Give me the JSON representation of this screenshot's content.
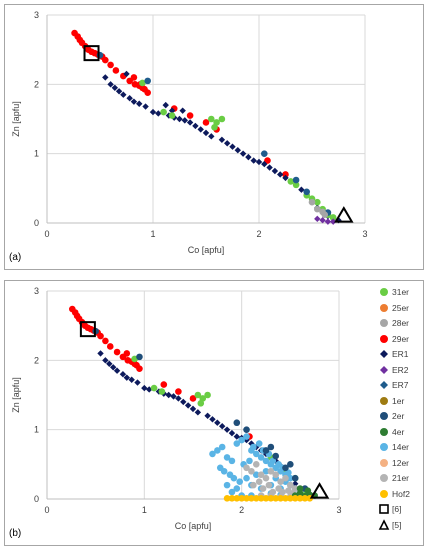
{
  "chart_data": [
    {
      "type": "scatter",
      "panel_label": "(a)",
      "xlabel": "Co [apfu]",
      "ylabel": "Zn [apfu]",
      "xlim": [
        0,
        3
      ],
      "ylim": [
        0,
        3
      ],
      "xticks": [
        "0",
        "1",
        "2",
        "3"
      ],
      "yticks": [
        "0",
        "1",
        "2",
        "3"
      ],
      "grid": true,
      "series": [
        {
          "color": "#ff0000",
          "marker": "circle",
          "x": [
            0.26,
            0.29,
            0.31,
            0.33,
            0.36,
            0.39,
            0.42,
            0.45,
            0.48,
            0.52,
            0.55,
            0.6,
            0.65,
            0.72,
            0.78,
            0.83,
            0.87,
            0.9,
            0.92,
            0.95,
            0.82,
            0.88,
            1.2,
            1.35,
            1.5,
            1.6,
            2.08,
            2.25
          ],
          "y": [
            2.74,
            2.69,
            2.64,
            2.6,
            2.55,
            2.5,
            2.47,
            2.45,
            2.43,
            2.4,
            2.35,
            2.28,
            2.2,
            2.12,
            2.05,
            2.0,
            1.98,
            1.95,
            1.93,
            1.88,
            2.1,
            2.0,
            1.65,
            1.55,
            1.45,
            1.35,
            0.9,
            0.7
          ]
        },
        {
          "color": "#0d1a5c",
          "marker": "diamond",
          "x": [
            0.55,
            0.6,
            0.64,
            0.68,
            0.72,
            0.78,
            0.82,
            0.87,
            0.93,
            1.0,
            1.05,
            1.1,
            1.15,
            1.2,
            1.25,
            1.3,
            1.35,
            1.4,
            1.45,
            1.5,
            1.55,
            1.65,
            1.7,
            1.75,
            1.8,
            1.85,
            1.9,
            1.95,
            2.0,
            2.05,
            2.1,
            2.15,
            2.2,
            2.25,
            2.3,
            2.35,
            2.4,
            2.45,
            2.5,
            2.55,
            2.6,
            2.65,
            2.7,
            2.75,
            1.12,
            1.18,
            1.28,
            0.75
          ],
          "y": [
            2.1,
            2.0,
            1.95,
            1.9,
            1.85,
            1.8,
            1.75,
            1.72,
            1.68,
            1.6,
            1.58,
            1.6,
            1.55,
            1.52,
            1.5,
            1.48,
            1.45,
            1.4,
            1.35,
            1.3,
            1.25,
            1.2,
            1.15,
            1.1,
            1.05,
            1.0,
            0.95,
            0.9,
            0.88,
            0.85,
            0.8,
            0.75,
            0.7,
            0.65,
            0.6,
            0.55,
            0.48,
            0.4,
            0.3,
            0.22,
            0.15,
            0.1,
            0.06,
            0.04,
            1.7,
            1.62,
            1.62,
            2.15
          ]
        },
        {
          "color": "#6acd44",
          "marker": "circle",
          "x": [
            0.9,
            1.1,
            1.18,
            1.55,
            1.6,
            1.65,
            1.58,
            2.3,
            2.35,
            2.45,
            2.5,
            2.55,
            2.6,
            2.65,
            2.7
          ],
          "y": [
            2.02,
            1.6,
            1.55,
            1.5,
            1.45,
            1.5,
            1.38,
            0.6,
            0.55,
            0.4,
            0.35,
            0.3,
            0.2,
            0.12,
            0.08
          ]
        },
        {
          "color": "#1f5c8c",
          "marker": "circle",
          "x": [
            0.5,
            0.95,
            2.05,
            2.35,
            2.45,
            2.65
          ],
          "y": [
            2.42,
            2.05,
            1.0,
            0.62,
            0.45,
            0.15
          ]
        },
        {
          "color": "#a6a6a6",
          "marker": "circle",
          "x": [
            2.5,
            2.55,
            2.6,
            2.62
          ],
          "y": [
            0.3,
            0.2,
            0.16,
            0.12
          ]
        },
        {
          "color": "#7030a0",
          "marker": "diamond",
          "x": [
            2.55,
            2.6,
            2.65,
            2.7
          ],
          "y": [
            0.06,
            0.04,
            0.02,
            0.02
          ]
        },
        {
          "color": "#000000",
          "marker": "open-square",
          "x": [
            0.42
          ],
          "y": [
            2.45
          ]
        },
        {
          "color": "#000000",
          "marker": "open-triangle",
          "x": [
            2.8
          ],
          "y": [
            0.1
          ]
        }
      ]
    },
    {
      "type": "scatter",
      "panel_label": "(b)",
      "xlabel": "Co [apfu]",
      "ylabel": "Zn [apfu]",
      "xlim": [
        0,
        3
      ],
      "ylim": [
        0,
        3
      ],
      "xticks": [
        "0",
        "1",
        "2",
        "3"
      ],
      "yticks": [
        "0",
        "1",
        "2",
        "3"
      ],
      "grid": true,
      "legend_position": "right",
      "legend": [
        {
          "label": "31er",
          "color": "#6acd44",
          "marker": "circle"
        },
        {
          "label": "25er",
          "color": "#ed7d31",
          "marker": "circle"
        },
        {
          "label": "28er",
          "color": "#a6a6a6",
          "marker": "circle"
        },
        {
          "label": "29er",
          "color": "#ff0000",
          "marker": "circle"
        },
        {
          "label": "ER1",
          "color": "#0d1a5c",
          "marker": "diamond"
        },
        {
          "label": "ER2",
          "color": "#7030a0",
          "marker": "diamond"
        },
        {
          "label": "ER7",
          "color": "#1f5c8c",
          "marker": "diamond"
        },
        {
          "label": "1er",
          "color": "#9e7b12",
          "marker": "circle"
        },
        {
          "label": "2er",
          "color": "#1f4e79",
          "marker": "circle"
        },
        {
          "label": "4er",
          "color": "#2e7d32",
          "marker": "circle"
        },
        {
          "label": "14er",
          "color": "#5ab4e5",
          "marker": "circle"
        },
        {
          "label": "12er",
          "color": "#f4b183",
          "marker": "circle"
        },
        {
          "label": "21er",
          "color": "#b4b4b4",
          "marker": "circle"
        },
        {
          "label": "Hof2",
          "color": "#ffc000",
          "marker": "circle"
        },
        {
          "label": "[6]",
          "color": "#000000",
          "marker": "open-square"
        },
        {
          "label": "[5]",
          "color": "#000000",
          "marker": "open-triangle"
        }
      ],
      "series": [
        {
          "name": "29er",
          "color": "#ff0000",
          "marker": "circle",
          "x": [
            0.26,
            0.29,
            0.31,
            0.33,
            0.36,
            0.39,
            0.42,
            0.45,
            0.48,
            0.52,
            0.55,
            0.6,
            0.65,
            0.72,
            0.78,
            0.83,
            0.87,
            0.9,
            0.92,
            0.95,
            0.82,
            1.2,
            1.35,
            1.5,
            2.08
          ],
          "y": [
            2.74,
            2.69,
            2.64,
            2.6,
            2.55,
            2.5,
            2.47,
            2.45,
            2.43,
            2.4,
            2.35,
            2.28,
            2.2,
            2.12,
            2.05,
            2.0,
            1.98,
            1.95,
            1.93,
            1.88,
            2.1,
            1.65,
            1.55,
            1.45,
            0.9
          ]
        },
        {
          "name": "ER1",
          "color": "#0d1a5c",
          "marker": "diamond",
          "x": [
            0.55,
            0.6,
            0.64,
            0.68,
            0.72,
            0.78,
            0.82,
            0.87,
            0.93,
            1.0,
            1.05,
            1.1,
            1.15,
            1.2,
            1.25,
            1.3,
            1.35,
            1.4,
            1.45,
            1.5,
            1.55,
            1.65,
            1.7,
            1.75,
            1.8,
            1.85,
            1.9,
            1.95,
            2.0,
            2.05,
            2.1,
            2.15,
            2.2,
            2.25,
            2.3,
            2.35,
            2.4,
            2.45,
            2.5,
            2.55,
            2.6,
            2.65,
            2.7
          ],
          "y": [
            2.1,
            2.0,
            1.95,
            1.9,
            1.85,
            1.8,
            1.75,
            1.72,
            1.68,
            1.6,
            1.58,
            1.6,
            1.55,
            1.52,
            1.5,
            1.48,
            1.45,
            1.4,
            1.35,
            1.3,
            1.25,
            1.2,
            1.15,
            1.1,
            1.05,
            1.0,
            0.95,
            0.9,
            0.88,
            0.85,
            0.8,
            0.75,
            0.7,
            0.65,
            0.6,
            0.55,
            0.48,
            0.4,
            0.3,
            0.22,
            0.15,
            0.1,
            0.06
          ]
        },
        {
          "name": "31er",
          "color": "#6acd44",
          "marker": "circle",
          "x": [
            0.9,
            1.1,
            1.18,
            1.55,
            1.6,
            1.65,
            1.58,
            2.3,
            2.45,
            2.55,
            2.65
          ],
          "y": [
            2.02,
            1.6,
            1.55,
            1.5,
            1.45,
            1.5,
            1.38,
            0.6,
            0.4,
            0.3,
            0.12
          ]
        },
        {
          "name": "14er",
          "color": "#5ab4e5",
          "marker": "circle",
          "x": [
            1.7,
            1.75,
            1.8,
            1.85,
            1.9,
            1.95,
            2.0,
            2.05,
            2.1,
            2.15,
            2.2,
            2.25,
            2.3,
            2.35,
            2.4,
            2.45,
            2.5,
            1.78,
            1.82,
            1.88,
            1.92,
            1.98,
            2.02,
            2.08,
            2.12,
            2.18,
            2.22,
            2.28,
            2.32,
            2.38,
            2.42,
            2.48,
            1.85,
            1.95,
            2.05,
            2.15,
            2.25,
            2.35,
            2.45,
            1.9,
            2.0,
            2.1,
            2.2,
            2.3,
            2.4,
            2.5,
            2.55,
            2.6,
            2.0,
            2.1,
            2.2,
            2.3,
            2.4
          ],
          "y": [
            0.65,
            0.7,
            0.75,
            0.6,
            0.55,
            0.8,
            0.85,
            0.9,
            0.7,
            0.65,
            0.6,
            0.55,
            0.5,
            0.45,
            0.4,
            0.35,
            0.3,
            0.45,
            0.4,
            0.35,
            0.3,
            0.25,
            0.5,
            0.55,
            0.75,
            0.8,
            0.7,
            0.65,
            0.55,
            0.5,
            0.45,
            0.38,
            0.2,
            0.15,
            0.3,
            0.35,
            0.4,
            0.3,
            0.25,
            0.1,
            0.05,
            0.2,
            0.15,
            0.2,
            0.15,
            0.2,
            0.15,
            0.1,
            0.02,
            0.05,
            0.03,
            0.08,
            0.06
          ]
        },
        {
          "name": "21er",
          "color": "#b4b4b4",
          "marker": "circle",
          "x": [
            2.05,
            2.1,
            2.15,
            2.2,
            2.25,
            2.3,
            2.35,
            2.4,
            2.45,
            2.5,
            2.55,
            2.6,
            2.12,
            2.18,
            2.22,
            2.28,
            2.32,
            2.38,
            2.42,
            2.48,
            2.52,
            2.58,
            2.2,
            2.3,
            2.4,
            2.5
          ],
          "y": [
            0.45,
            0.4,
            0.5,
            0.35,
            0.3,
            0.4,
            0.35,
            0.25,
            0.3,
            0.2,
            0.15,
            0.1,
            0.2,
            0.25,
            0.15,
            0.2,
            0.1,
            0.15,
            0.1,
            0.12,
            0.08,
            0.05,
            0.05,
            0.05,
            0.03,
            0.04
          ]
        },
        {
          "name": "2er",
          "color": "#1f4e79",
          "marker": "circle",
          "x": [
            0.5,
            0.95,
            1.95,
            2.05,
            2.25,
            2.35,
            2.45,
            2.55,
            2.65,
            2.3,
            2.5
          ],
          "y": [
            2.42,
            2.05,
            1.1,
            1.0,
            0.7,
            0.62,
            0.45,
            0.3,
            0.15,
            0.75,
            0.5
          ]
        },
        {
          "name": "4er",
          "color": "#2e7d32",
          "marker": "circle",
          "x": [
            2.55,
            2.6,
            2.65,
            2.7,
            2.75,
            2.6,
            2.68
          ],
          "y": [
            0.05,
            0.08,
            0.04,
            0.06,
            0.05,
            0.15,
            0.12
          ]
        },
        {
          "name": "Hof2",
          "color": "#ffc000",
          "marker": "circle",
          "x": [
            1.85,
            1.9,
            1.95,
            2.0,
            2.05,
            2.1,
            2.15,
            2.2,
            2.25,
            2.3,
            2.35,
            2.4,
            2.45,
            2.5,
            2.55,
            2.6,
            2.65,
            2.7
          ],
          "y": [
            0.01,
            0.01,
            0.01,
            0.01,
            0.01,
            0.01,
            0.01,
            0.01,
            0.01,
            0.01,
            0.01,
            0.01,
            0.01,
            0.01,
            0.01,
            0.01,
            0.01,
            0.01
          ]
        },
        {
          "name": "[6]",
          "color": "#000000",
          "marker": "open-square",
          "x": [
            0.42
          ],
          "y": [
            2.45
          ]
        },
        {
          "name": "[5]",
          "color": "#000000",
          "marker": "open-triangle",
          "x": [
            2.8
          ],
          "y": [
            0.1
          ]
        }
      ]
    }
  ]
}
